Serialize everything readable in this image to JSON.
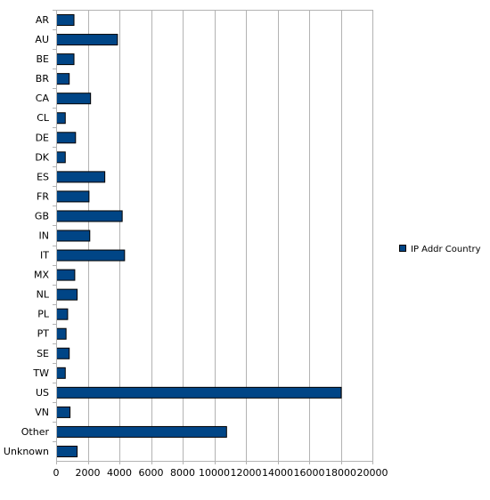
{
  "chart_data": {
    "type": "bar",
    "orientation": "horizontal",
    "title": "",
    "xlabel": "",
    "ylabel": "",
    "xlim": [
      0,
      20000
    ],
    "x_ticks": [
      0,
      2000,
      4000,
      6000,
      8000,
      10000,
      12000,
      14000,
      16000,
      18000,
      20000
    ],
    "grid": "vertical",
    "legend_position": "right",
    "categories": [
      "AR",
      "AU",
      "BE",
      "BR",
      "CA",
      "CL",
      "DE",
      "DK",
      "ES",
      "FR",
      "GB",
      "IN",
      "IT",
      "MX",
      "NL",
      "PL",
      "PT",
      "SE",
      "TW",
      "US",
      "VN",
      "Other",
      "Unknown"
    ],
    "series": [
      {
        "name": "IP Addr Country",
        "color": "#004586",
        "values": [
          1100,
          3850,
          1100,
          800,
          2150,
          550,
          1200,
          550,
          3050,
          2050,
          4150,
          2100,
          4300,
          1150,
          1300,
          700,
          600,
          800,
          550,
          18000,
          850,
          10750,
          1300
        ]
      }
    ]
  }
}
